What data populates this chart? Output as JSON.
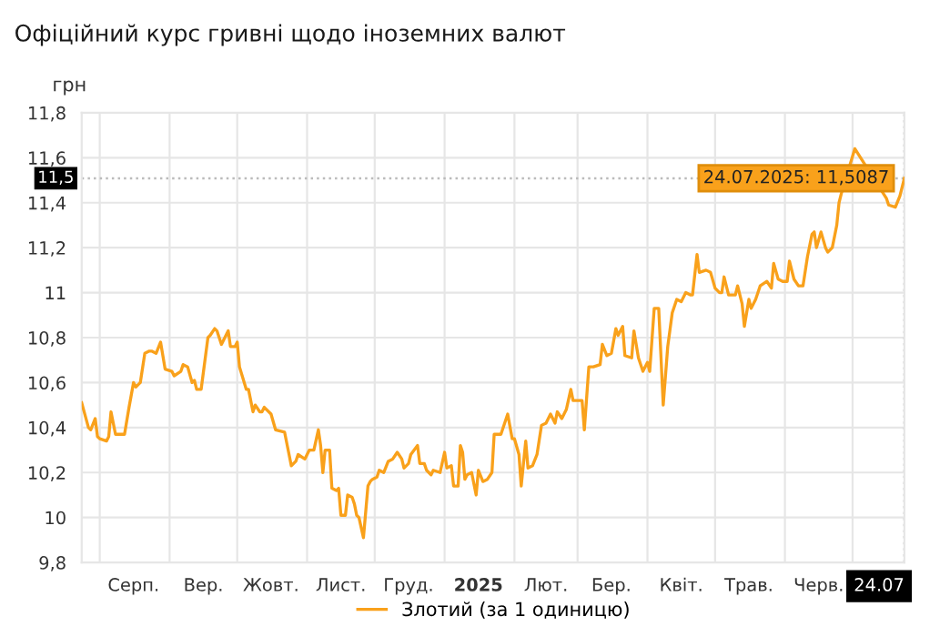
{
  "chart_data": {
    "type": "line",
    "title": "Офіційний курс гривні щодо іноземних валют",
    "ylabel": "грн",
    "x": [
      "2024-07-24",
      "2024-07-27",
      "2024-07-28",
      "2024-07-30",
      "2024-07-31",
      "2024-08-01",
      "2024-08-04",
      "2024-08-05",
      "2024-08-06",
      "2024-08-08",
      "2024-08-12",
      "2024-08-14",
      "2024-08-16",
      "2024-08-17",
      "2024-08-19",
      "2024-08-21",
      "2024-08-23",
      "2024-08-24",
      "2024-08-26",
      "2024-08-28",
      "2024-08-30",
      "2024-09-02",
      "2024-09-03",
      "2024-09-06",
      "2024-09-07",
      "2024-09-09",
      "2024-09-11",
      "2024-09-12",
      "2024-09-13",
      "2024-09-15",
      "2024-09-18",
      "2024-09-19",
      "2024-09-21",
      "2024-09-22",
      "2024-09-24",
      "2024-09-25",
      "2024-09-27",
      "2024-09-28",
      "2024-09-30",
      "2024-10-01",
      "2024-10-02",
      "2024-10-05",
      "2024-10-06",
      "2024-10-08",
      "2024-10-09",
      "2024-10-11",
      "2024-10-12",
      "2024-10-13",
      "2024-10-16",
      "2024-10-18",
      "2024-10-22",
      "2024-10-24",
      "2024-10-25",
      "2024-10-27",
      "2024-10-28",
      "2024-10-31",
      "2024-11-02",
      "2024-11-04",
      "2024-11-06",
      "2024-11-07",
      "2024-11-08",
      "2024-11-09",
      "2024-11-11",
      "2024-11-12",
      "2024-11-14",
      "2024-11-15",
      "2024-11-16",
      "2024-11-18",
      "2024-11-19",
      "2024-11-21",
      "2024-11-22",
      "2024-11-23",
      "2024-11-24",
      "2024-11-26",
      "2024-11-28",
      "2024-11-29",
      "2024-11-30",
      "2024-12-02",
      "2024-12-03",
      "2024-12-05",
      "2024-12-07",
      "2024-12-09",
      "2024-12-11",
      "2024-12-13",
      "2024-12-14",
      "2024-12-16",
      "2024-12-17",
      "2024-12-20",
      "2024-12-21",
      "2024-12-23",
      "2024-12-24",
      "2024-12-26",
      "2024-12-27",
      "2024-12-30",
      "2025-01-01",
      "2025-01-02",
      "2025-01-04",
      "2025-01-05",
      "2025-01-07",
      "2025-01-08",
      "2025-01-09",
      "2025-01-10",
      "2025-01-11",
      "2025-01-13",
      "2025-01-15",
      "2025-01-16",
      "2025-01-18",
      "2025-01-20",
      "2025-01-22",
      "2025-01-23",
      "2025-01-26",
      "2025-01-29",
      "2025-01-31",
      "2025-02-01",
      "2025-02-03",
      "2025-02-04",
      "2025-02-06",
      "2025-02-07",
      "2025-02-09",
      "2025-02-11",
      "2025-02-13",
      "2025-02-15",
      "2025-02-17",
      "2025-02-19",
      "2025-02-20",
      "2025-02-22",
      "2025-02-24",
      "2025-02-26",
      "2025-02-27",
      "2025-03-03",
      "2025-03-04",
      "2025-03-06",
      "2025-03-08",
      "2025-03-11",
      "2025-03-12",
      "2025-03-14",
      "2025-03-16",
      "2025-03-18",
      "2025-03-19",
      "2025-03-21",
      "2025-03-22",
      "2025-03-25",
      "2025-03-26",
      "2025-03-28",
      "2025-03-30",
      "2025-04-01",
      "2025-04-02",
      "2025-04-04",
      "2025-04-06",
      "2025-04-08",
      "2025-04-10",
      "2025-04-12",
      "2025-04-14",
      "2025-04-16",
      "2025-04-18",
      "2025-04-20",
      "2025-04-21",
      "2025-04-23",
      "2025-04-24",
      "2025-04-27",
      "2025-04-29",
      "2025-05-01",
      "2025-05-03",
      "2025-05-04",
      "2025-05-05",
      "2025-05-07",
      "2025-05-08",
      "2025-05-10",
      "2025-05-11",
      "2025-05-13",
      "2025-05-14",
      "2025-05-16",
      "2025-05-17",
      "2025-05-19",
      "2025-05-21",
      "2025-05-24",
      "2025-05-26",
      "2025-05-27",
      "2025-05-29",
      "2025-05-31",
      "2025-06-02",
      "2025-06-03",
      "2025-06-05",
      "2025-06-07",
      "2025-06-09",
      "2025-06-11",
      "2025-06-13",
      "2025-06-14",
      "2025-06-15",
      "2025-06-17",
      "2025-06-19",
      "2025-06-20",
      "2025-06-22",
      "2025-06-24",
      "2025-06-25",
      "2025-06-26",
      "2025-07-02",
      "2025-07-16",
      "2025-07-17",
      "2025-07-20",
      "2025-07-22",
      "2025-07-24"
    ],
    "series": [
      {
        "name": "Злотий (за 1 одиницю)",
        "color": "#f9a11b",
        "values": [
          10.51,
          10.4,
          10.39,
          10.44,
          10.36,
          10.35,
          10.34,
          10.36,
          10.47,
          10.37,
          10.37,
          10.49,
          10.6,
          10.58,
          10.6,
          10.73,
          10.74,
          10.74,
          10.73,
          10.78,
          10.66,
          10.65,
          10.63,
          10.65,
          10.68,
          10.67,
          10.6,
          10.61,
          10.57,
          10.57,
          10.8,
          10.81,
          10.84,
          10.83,
          10.77,
          10.79,
          10.83,
          10.76,
          10.76,
          10.78,
          10.67,
          10.57,
          10.57,
          10.47,
          10.5,
          10.47,
          10.47,
          10.49,
          10.46,
          10.39,
          10.38,
          10.28,
          10.23,
          10.25,
          10.28,
          10.26,
          10.3,
          10.3,
          10.39,
          10.32,
          10.2,
          10.3,
          10.3,
          10.13,
          10.12,
          10.13,
          10.01,
          10.01,
          10.1,
          10.09,
          10.06,
          10.01,
          10.0,
          9.91,
          10.14,
          10.16,
          10.17,
          10.18,
          10.21,
          10.2,
          10.25,
          10.26,
          10.29,
          10.26,
          10.22,
          10.24,
          10.28,
          10.32,
          10.24,
          10.24,
          10.21,
          10.19,
          10.21,
          10.2,
          10.29,
          10.22,
          10.23,
          10.14,
          10.14,
          10.32,
          10.29,
          10.17,
          10.19,
          10.2,
          10.1,
          10.21,
          10.16,
          10.17,
          10.2,
          10.37,
          10.37,
          10.46,
          10.35,
          10.35,
          10.28,
          10.14,
          10.34,
          10.22,
          10.23,
          10.28,
          10.41,
          10.42,
          10.46,
          10.42,
          10.47,
          10.44,
          10.48,
          10.57,
          10.52,
          10.52,
          10.39,
          10.67,
          10.67,
          10.68,
          10.77,
          10.72,
          10.73,
          10.84,
          10.81,
          10.85,
          10.72,
          10.71,
          10.83,
          10.71,
          10.65,
          10.69,
          10.65,
          10.93,
          10.93,
          10.5,
          10.76,
          10.91,
          10.97,
          10.96,
          11.0,
          10.99,
          10.99,
          11.17,
          11.09,
          11.1,
          11.09,
          11.02,
          11.0,
          11.0,
          11.07,
          10.99,
          10.99,
          10.99,
          11.03,
          10.95,
          10.85,
          10.97,
          10.93,
          10.97,
          11.03,
          11.05,
          11.02,
          11.13,
          11.06,
          11.05,
          11.05,
          11.14,
          11.06,
          11.03,
          11.03,
          11.16,
          11.26,
          11.27,
          11.2,
          11.27,
          11.2,
          11.18,
          11.2,
          11.3,
          11.4,
          11.44,
          11.64,
          11.42,
          11.39,
          11.38,
          11.43,
          11.5087
        ]
      }
    ],
    "xlim": [
      "2024-07-24",
      "2025-07-24"
    ],
    "xticks": [
      {
        "value": "2024-08-01",
        "label": null
      },
      {
        "value": "2024-08-16",
        "label": "Серп."
      },
      {
        "value": "2024-09-01",
        "label": null
      },
      {
        "value": "2024-09-16",
        "label": "Вер."
      },
      {
        "value": "2024-10-01",
        "label": null
      },
      {
        "value": "2024-10-16",
        "label": "Жовт."
      },
      {
        "value": "2024-11-01",
        "label": null
      },
      {
        "value": "2024-11-16",
        "label": "Лист."
      },
      {
        "value": "2024-12-01",
        "label": null
      },
      {
        "value": "2024-12-16",
        "label": "Груд."
      },
      {
        "value": "2025-01-01",
        "label": null
      },
      {
        "value": "2025-01-16",
        "label": "2025"
      },
      {
        "value": "2025-02-01",
        "label": null
      },
      {
        "value": "2025-02-15",
        "label": "Лют."
      },
      {
        "value": "2025-03-01",
        "label": null
      },
      {
        "value": "2025-03-16",
        "label": "Бер."
      },
      {
        "value": "2025-04-01",
        "label": null
      },
      {
        "value": "2025-04-16",
        "label": "Квіт."
      },
      {
        "value": "2025-05-01",
        "label": null
      },
      {
        "value": "2025-05-16",
        "label": "Трав."
      },
      {
        "value": "2025-06-01",
        "label": null
      },
      {
        "value": "2025-06-16",
        "label": "Черв."
      },
      {
        "value": "2025-07-01",
        "label": null
      },
      {
        "value": "2025-07-24",
        "label": "24.07"
      }
    ],
    "ylim": [
      9.8,
      11.8
    ],
    "yticks": [
      {
        "value": 9.8,
        "label": "9,8"
      },
      10,
      {
        "value": 10.2,
        "label": "10,2"
      },
      {
        "value": 10.4,
        "label": "10,4"
      },
      {
        "value": 10.6,
        "label": "10,6"
      },
      {
        "value": 10.8,
        "label": "10,8"
      },
      11,
      {
        "value": 11.2,
        "label": "11,2"
      },
      {
        "value": 11.4,
        "label": "11,4"
      },
      {
        "value": 11.6,
        "label": "11,6"
      },
      {
        "value": 11.8,
        "label": "11,8"
      }
    ],
    "ref_lines": [
      {
        "axis": "y",
        "value": 11.5087,
        "label": "11,5",
        "line_style": "dotted",
        "color": "#bbbbbb"
      },
      {
        "axis": "x",
        "value": "2025-07-24",
        "line_style": "dotted",
        "color": "#bbbbbb"
      }
    ],
    "annotations": [
      {
        "text": "24.07.2025: 11,5087",
        "x": "2025-07-24",
        "y": 11.5087
      }
    ],
    "grid": true,
    "legend": "bottom",
    "marker": "none",
    "line_style": "solid"
  }
}
